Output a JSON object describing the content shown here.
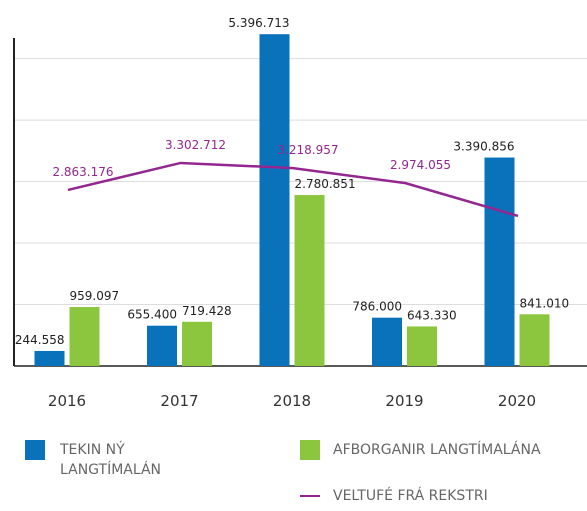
{
  "chart_data": {
    "type": "bar",
    "categories": [
      "2016",
      "2017",
      "2018",
      "2019",
      "2020"
    ],
    "series": [
      {
        "name": "TEKIN NÝ LANGTÍMALÁN",
        "type": "bar",
        "color": "#0a72ba",
        "values": [
          244558,
          655400,
          5396713,
          786000,
          3390856
        ],
        "value_labels": [
          "244.558",
          "655.400",
          "5.396.713",
          "786.000",
          "3.390.856"
        ]
      },
      {
        "name": "AFBORGANIR LANGTÍMALÁNA",
        "type": "bar",
        "color": "#8cc63f",
        "values": [
          959097,
          719428,
          2780851,
          643330,
          841010
        ],
        "value_labels": [
          "959.097",
          "719.428",
          "2.780.851",
          "643.330",
          "841.010"
        ]
      },
      {
        "name": "VELTUFÉ FRÁ REKSTRI",
        "type": "line",
        "color": "#93278f",
        "values": [
          2863176,
          3302712,
          3218957,
          2974055,
          2440000
        ],
        "value_labels": [
          "2.863.176",
          "3.302.712",
          "3.218.957",
          "2.974.055",
          null
        ]
      }
    ],
    "ylim": [
      0,
      5400000
    ],
    "yticks": [
      0,
      1000000,
      2000000,
      3000000,
      4000000,
      5000000
    ],
    "grid": true
  }
}
